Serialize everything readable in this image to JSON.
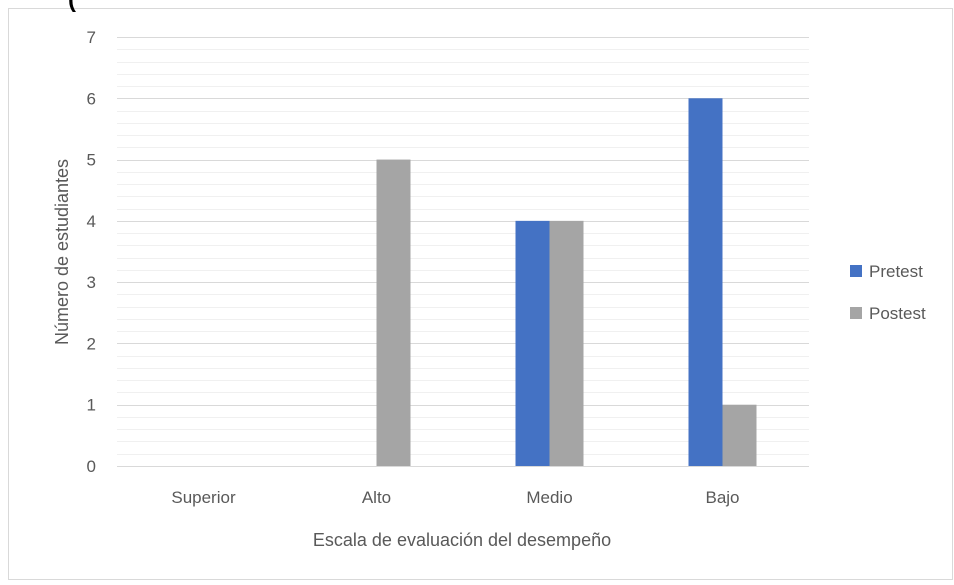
{
  "colors": {
    "pretest": "#4472C4",
    "postest": "#A5A5A5",
    "grid_major": "#D9D9D9",
    "grid_minor": "#F0F0F0",
    "axis_text": "#595959",
    "border": "#D9D9D9"
  },
  "chart_data": {
    "type": "bar",
    "title": "(",
    "xlabel": "Escala de evaluación del desempeño",
    "ylabel": "Número de estudiantes",
    "categories": [
      "Superior",
      "Alto",
      "Medio",
      "Bajo"
    ],
    "series": [
      {
        "name": "Pretest",
        "values": [
          0,
          0,
          4,
          6
        ]
      },
      {
        "name": "Postest",
        "values": [
          0,
          5,
          4,
          1
        ]
      }
    ],
    "ylim": [
      0,
      7
    ],
    "yticks": [
      0,
      1,
      2,
      3,
      4,
      5,
      6,
      7
    ],
    "grid": true,
    "legend": "right"
  }
}
